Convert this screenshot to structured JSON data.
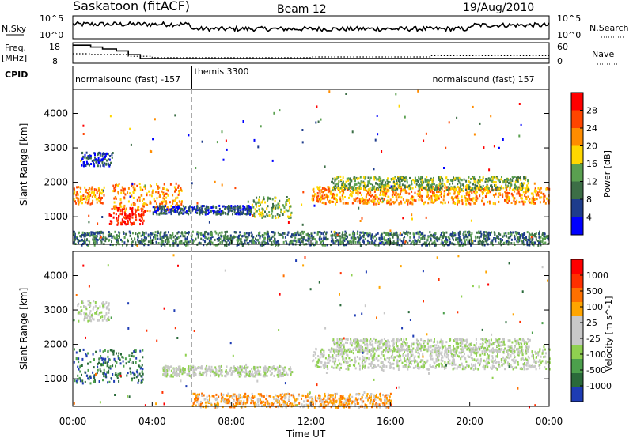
{
  "header": {
    "station": "Saskatoon (fitACF)",
    "beam": "Beam 12",
    "date": "19/Aug/2010"
  },
  "nsky_panel": {
    "left_label": "N.Sky",
    "right_label": "N.Search",
    "left_ticks": [
      "10^5",
      "10^0"
    ],
    "right_ticks": [
      "10^5",
      "10^0"
    ]
  },
  "freq_panel": {
    "left_label_line1": "Freq.",
    "left_label_line2": "[MHz]",
    "right_label": "Nave",
    "left_ticks": [
      "18",
      "8"
    ],
    "right_ticks": [
      "60",
      "0"
    ],
    "freq_steps": [
      {
        "t": 0.0,
        "f": 17.5
      },
      {
        "t": 0.9,
        "f": 16.5
      },
      {
        "t": 1.5,
        "f": 15.5
      },
      {
        "t": 2.2,
        "f": 14.5
      },
      {
        "t": 2.8,
        "f": 12.5
      },
      {
        "t": 3.4,
        "f": 10.5
      },
      {
        "t": 24.0,
        "f": 10.5
      }
    ],
    "nave_steps": [
      {
        "t": 0.0,
        "n": 30
      },
      {
        "t": 0.9,
        "n": 28
      },
      {
        "t": 2.8,
        "n": 22
      },
      {
        "t": 4.0,
        "n": 18
      },
      {
        "t": 11.0,
        "n": 18
      },
      {
        "t": 12.0,
        "n": 20
      },
      {
        "t": 18.0,
        "n": 24
      },
      {
        "t": 24.0,
        "n": 24
      }
    ]
  },
  "cpid": {
    "label": "CPID",
    "segments": [
      {
        "label": "normalsound (fast) -157",
        "start": 0,
        "end": 6
      },
      {
        "label": "themis 3300",
        "start": 6,
        "end": 18
      },
      {
        "label": "normalsound (fast) 157",
        "start": 18,
        "end": 24
      }
    ]
  },
  "colors": {
    "power_scale": [
      "#0000ff",
      "#1e3c8c",
      "#3c6e46",
      "#5aa050",
      "#ffd700",
      "#ff8c00",
      "#ff4500",
      "#ff0000"
    ],
    "velocity_scale": [
      "#1e3cb4",
      "#2a6a3a",
      "#4ca04c",
      "#8fd050",
      "#c8c8c8",
      "#c8c8c8",
      "#ffa500",
      "#ff7000",
      "#ff3000",
      "#ff0000"
    ]
  },
  "chart_data": [
    {
      "type": "heatmap",
      "name": "Power",
      "ylabel": "Slant Range [km]",
      "xlabel": "Time UT",
      "xlim": [
        0,
        24
      ],
      "ylim": [
        200,
        4700
      ],
      "yticks": [
        "1000",
        "2000",
        "3000",
        "4000"
      ],
      "xticks": [
        "00:00",
        "04:00",
        "08:00",
        "12:00",
        "16:00",
        "20:00",
        "00:00"
      ],
      "colorbar_label": "Power [dB]",
      "colorbar_ticks": [
        "28",
        "24",
        "20",
        "16",
        "12",
        "8",
        "4"
      ],
      "bands": [
        {
          "t0": 0.0,
          "t1": 1.6,
          "r0": 1400,
          "r1": 1900,
          "level": 5
        },
        {
          "t0": 0.4,
          "t1": 2.0,
          "r0": 2500,
          "r1": 2900,
          "level": 1
        },
        {
          "t0": 1.8,
          "t1": 3.6,
          "r0": 800,
          "r1": 1300,
          "level": 7
        },
        {
          "t0": 2.0,
          "t1": 5.5,
          "r0": 1200,
          "r1": 2000,
          "level": 5
        },
        {
          "t0": 4.0,
          "t1": 9.0,
          "r0": 1100,
          "r1": 1350,
          "level": 1
        },
        {
          "t0": 9.0,
          "t1": 11.0,
          "r0": 1000,
          "r1": 1600,
          "level": 3
        },
        {
          "t0": 12.0,
          "t1": 24.0,
          "r0": 1400,
          "r1": 1900,
          "level": 5
        },
        {
          "t0": 13.0,
          "t1": 23.0,
          "r0": 1800,
          "r1": 2200,
          "level": 3
        },
        {
          "t0": 0.0,
          "t1": 24.0,
          "r0": 200,
          "r1": 600,
          "level": 2
        }
      ]
    },
    {
      "type": "heatmap",
      "name": "Velocity",
      "ylabel": "Slant Range [km]",
      "xlabel": "Time UT",
      "xlim": [
        0,
        24
      ],
      "ylim": [
        200,
        4700
      ],
      "yticks": [
        "1000",
        "2000",
        "3000",
        "4000"
      ],
      "xticks": [
        "00:00",
        "04:00",
        "08:00",
        "12:00",
        "16:00",
        "20:00",
        "00:00"
      ],
      "colorbar_label": "Velocity [m s^-1]",
      "colorbar_ticks": [
        "1000",
        "500",
        "100",
        "25",
        "-25",
        "-100",
        "-500",
        "-1000"
      ],
      "bands": [
        {
          "t0": 0.0,
          "t1": 3.5,
          "r0": 900,
          "r1": 1900,
          "level": 1
        },
        {
          "t0": 0.2,
          "t1": 1.8,
          "r0": 2700,
          "r1": 3300,
          "level": 4
        },
        {
          "t0": 4.5,
          "t1": 11.0,
          "r0": 1100,
          "r1": 1400,
          "level": 4
        },
        {
          "t0": 12.0,
          "t1": 24.0,
          "r0": 1300,
          "r1": 1900,
          "level": 4
        },
        {
          "t0": 13.0,
          "t1": 23.0,
          "r0": 1800,
          "r1": 2200,
          "level": 4
        },
        {
          "t0": 6.0,
          "t1": 16.0,
          "r0": 200,
          "r1": 600,
          "level": 6
        }
      ]
    }
  ]
}
